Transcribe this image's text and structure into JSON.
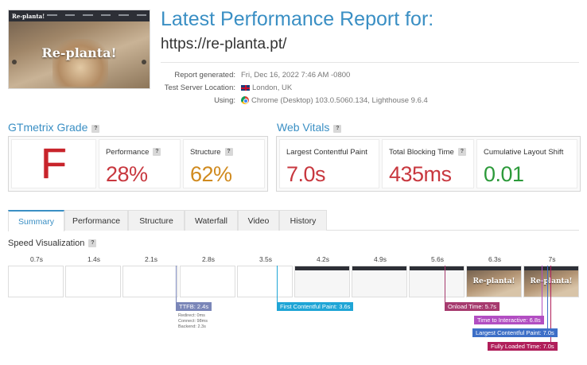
{
  "thumbnail": {
    "logo": "Re-planta!",
    "hero_text": "Re-planta!"
  },
  "header": {
    "title": "Latest Performance Report for:",
    "url": "https://re-planta.pt/"
  },
  "meta": {
    "generated_label": "Report generated:",
    "generated_value": "Fri, Dec 16, 2022 7:46 AM -0800",
    "location_label": "Test Server Location:",
    "location_value": "London, UK",
    "using_label": "Using:",
    "using_value": "Chrome (Desktop) 103.0.5060.134, Lighthouse 9.6.4"
  },
  "grade": {
    "heading": "GTmetrix Grade",
    "letter": "F",
    "performance_label": "Performance",
    "performance_value": "28%",
    "structure_label": "Structure",
    "structure_value": "62%"
  },
  "vitals": {
    "heading": "Web Vitals",
    "lcp_label": "Largest Contentful Paint",
    "lcp_value": "7.0s",
    "tbt_label": "Total Blocking Time",
    "tbt_value": "435ms",
    "cls_label": "Cumulative Layout Shift",
    "cls_value": "0.01"
  },
  "colors": {
    "accent": "#3a8fc4",
    "grade_f": "#c8242b",
    "bad": "#c8383f",
    "medium": "#d08a1e",
    "good": "#2c9a3a"
  },
  "tabs": [
    "Summary",
    "Performance",
    "Structure",
    "Waterfall",
    "Video",
    "History"
  ],
  "speed": {
    "heading": "Speed Visualization",
    "ticks": [
      "0.7s",
      "1.4s",
      "2.1s",
      "2.8s",
      "3.5s",
      "4.2s",
      "4.9s",
      "5.6s",
      "6.3s",
      "7s"
    ],
    "frame_text": "Re-planta!",
    "markers": {
      "ttfb": "TTFB: 2.4s",
      "ttfb_redirect": "Redirect: 0ms",
      "ttfb_connect": "Connect: 98ms",
      "ttfb_backend": "Backend: 2.3s",
      "fcp": "First Contentful Paint: 3.6s",
      "onload": "Onload Time: 5.7s",
      "tti": "Time to Interactive: 6.8s",
      "lcp": "Largest Contentful Paint: 7.0s",
      "fully_loaded": "Fully Loaded Time: 7.0s"
    }
  }
}
